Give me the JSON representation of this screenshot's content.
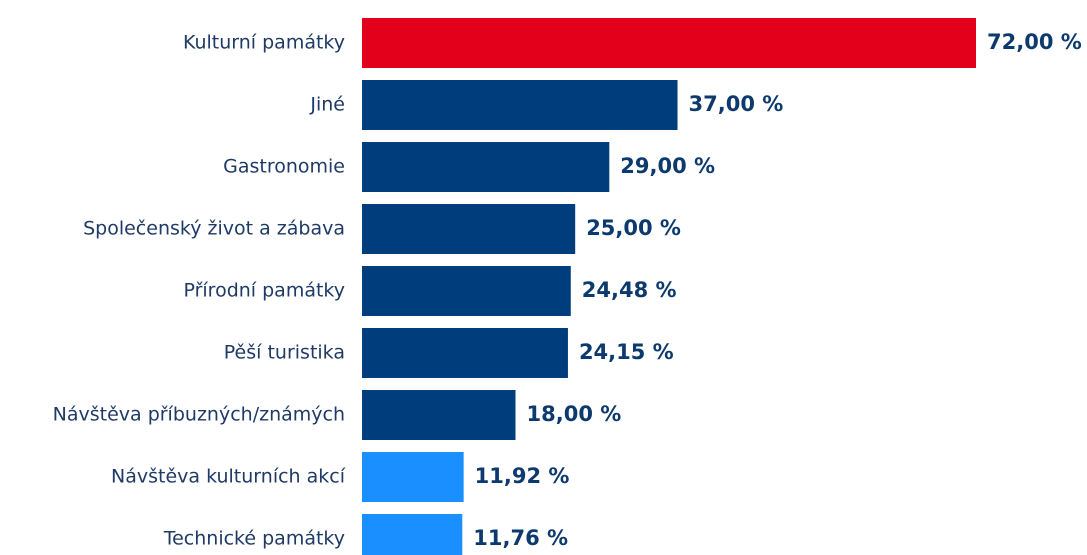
{
  "chart_data": {
    "type": "bar",
    "orientation": "horizontal",
    "categories": [
      "Kulturní památky",
      "Jiné",
      "Gastronomie",
      "Společenský život a zábava",
      "Přírodní památky",
      "Pěší turistika",
      "Návštěva příbuzných/známých",
      "Návštěva kulturních akcí",
      "Technické památky"
    ],
    "values": [
      72.0,
      37.0,
      29.0,
      25.0,
      24.48,
      24.15,
      18.0,
      11.92,
      11.76
    ],
    "value_labels": [
      "72,00 %",
      "37,00 %",
      "29,00 %",
      "25,00 %",
      "24,48 %",
      "24,15 %",
      "18,00 %",
      "11,92 %",
      "11,76 %"
    ],
    "colors": [
      "#e2001a",
      "#003d7c",
      "#003d7c",
      "#003d7c",
      "#003d7c",
      "#003d7c",
      "#003d7c",
      "#1a8fff",
      "#1a8fff"
    ]
  }
}
